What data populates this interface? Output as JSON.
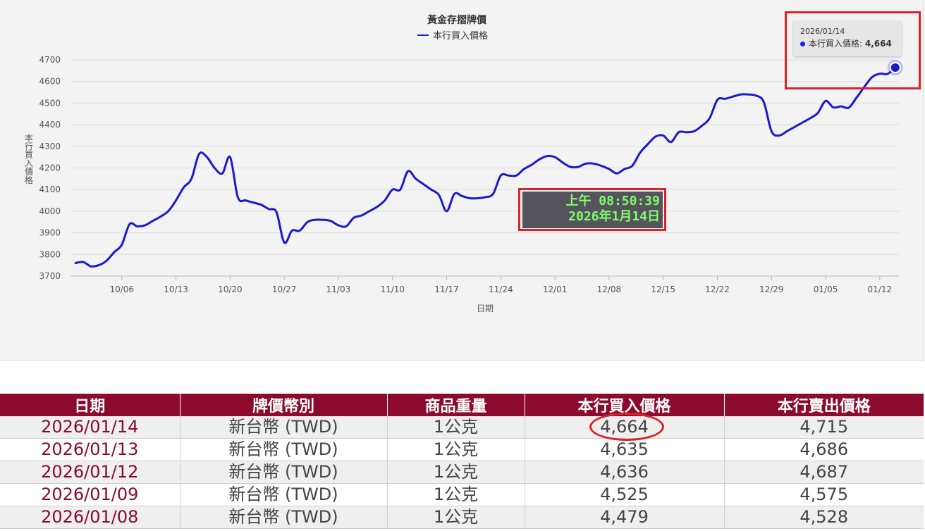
{
  "chart_data": {
    "type": "line",
    "title": "黃金存摺牌價",
    "xlabel": "日期",
    "ylabel": "本行買入價格",
    "ylim": [
      3700,
      4700
    ],
    "yticks": [
      3700,
      3800,
      3900,
      4000,
      4100,
      4200,
      4300,
      4400,
      4500,
      4600,
      4700
    ],
    "xticks": [
      "10/06",
      "10/13",
      "10/20",
      "10/27",
      "11/03",
      "11/10",
      "11/17",
      "11/24",
      "12/01",
      "12/08",
      "12/15",
      "12/22",
      "12/29",
      "01/05",
      "01/12"
    ],
    "grid": true,
    "legend": "top-center",
    "line_color": "#1a1acc",
    "series": [
      {
        "name": "本行買入價格",
        "points": [
          [
            "2025-09-30",
            3760
          ],
          [
            "2025-10-01",
            3765
          ],
          [
            "2025-10-02",
            3745
          ],
          [
            "2025-10-03",
            3750
          ],
          [
            "2025-10-04",
            3770
          ],
          [
            "2025-10-05",
            3810
          ],
          [
            "2025-10-06",
            3845
          ],
          [
            "2025-10-07",
            3940
          ],
          [
            "2025-10-08",
            3930
          ],
          [
            "2025-10-09",
            3935
          ],
          [
            "2025-10-10",
            3955
          ],
          [
            "2025-10-11",
            3975
          ],
          [
            "2025-10-12",
            4000
          ],
          [
            "2025-10-13",
            4050
          ],
          [
            "2025-10-14",
            4110
          ],
          [
            "2025-10-15",
            4150
          ],
          [
            "2025-10-16",
            4265
          ],
          [
            "2025-10-17",
            4250
          ],
          [
            "2025-10-18",
            4200
          ],
          [
            "2025-10-19",
            4175
          ],
          [
            "2025-10-20",
            4250
          ],
          [
            "2025-10-21",
            4065
          ],
          [
            "2025-10-22",
            4050
          ],
          [
            "2025-10-23",
            4040
          ],
          [
            "2025-10-24",
            4030
          ],
          [
            "2025-10-25",
            4010
          ],
          [
            "2025-10-26",
            3995
          ],
          [
            "2025-10-27",
            3855
          ],
          [
            "2025-10-28",
            3910
          ],
          [
            "2025-10-29",
            3910
          ],
          [
            "2025-10-30",
            3950
          ],
          [
            "2025-10-31",
            3960
          ],
          [
            "2025-11-01",
            3960
          ],
          [
            "2025-11-02",
            3955
          ],
          [
            "2025-11-03",
            3935
          ],
          [
            "2025-11-04",
            3930
          ],
          [
            "2025-11-05",
            3970
          ],
          [
            "2025-11-06",
            3980
          ],
          [
            "2025-11-07",
            4000
          ],
          [
            "2025-11-08",
            4020
          ],
          [
            "2025-11-09",
            4050
          ],
          [
            "2025-11-10",
            4100
          ],
          [
            "2025-11-11",
            4100
          ],
          [
            "2025-11-12",
            4185
          ],
          [
            "2025-11-13",
            4150
          ],
          [
            "2025-11-14",
            4125
          ],
          [
            "2025-11-15",
            4100
          ],
          [
            "2025-11-16",
            4075
          ],
          [
            "2025-11-17",
            4000
          ],
          [
            "2025-11-18",
            4080
          ],
          [
            "2025-11-19",
            4070
          ],
          [
            "2025-11-20",
            4060
          ],
          [
            "2025-11-21",
            4060
          ],
          [
            "2025-11-22",
            4065
          ],
          [
            "2025-11-23",
            4080
          ],
          [
            "2025-11-24",
            4165
          ],
          [
            "2025-11-25",
            4165
          ],
          [
            "2025-11-26",
            4165
          ],
          [
            "2025-11-27",
            4195
          ],
          [
            "2025-11-28",
            4215
          ],
          [
            "2025-11-29",
            4240
          ],
          [
            "2025-11-30",
            4255
          ],
          [
            "2025-12-01",
            4250
          ],
          [
            "2025-12-02",
            4225
          ],
          [
            "2025-12-03",
            4205
          ],
          [
            "2025-12-04",
            4205
          ],
          [
            "2025-12-05",
            4220
          ],
          [
            "2025-12-06",
            4220
          ],
          [
            "2025-12-07",
            4210
          ],
          [
            "2025-12-08",
            4195
          ],
          [
            "2025-12-09",
            4175
          ],
          [
            "2025-12-10",
            4195
          ],
          [
            "2025-12-11",
            4210
          ],
          [
            "2025-12-12",
            4270
          ],
          [
            "2025-12-13",
            4310
          ],
          [
            "2025-12-14",
            4345
          ],
          [
            "2025-12-15",
            4350
          ],
          [
            "2025-12-16",
            4320
          ],
          [
            "2025-12-17",
            4365
          ],
          [
            "2025-12-18",
            4365
          ],
          [
            "2025-12-19",
            4370
          ],
          [
            "2025-12-20",
            4395
          ],
          [
            "2025-12-21",
            4430
          ],
          [
            "2025-12-22",
            4515
          ],
          [
            "2025-12-23",
            4520
          ],
          [
            "2025-12-24",
            4530
          ],
          [
            "2025-12-25",
            4540
          ],
          [
            "2025-12-26",
            4540
          ],
          [
            "2025-12-27",
            4535
          ],
          [
            "2025-12-28",
            4505
          ],
          [
            "2025-12-29",
            4370
          ],
          [
            "2025-12-30",
            4350
          ],
          [
            "2025-12-31",
            4370
          ],
          [
            "2026-01-01",
            4390
          ],
          [
            "2026-01-02",
            4410
          ],
          [
            "2026-01-03",
            4430
          ],
          [
            "2026-01-04",
            4455
          ],
          [
            "2026-01-05",
            4510
          ],
          [
            "2026-01-06",
            4480
          ],
          [
            "2026-01-07",
            4485
          ],
          [
            "2026-01-08",
            4479
          ],
          [
            "2026-01-09",
            4525
          ],
          [
            "2026-01-10",
            4575
          ],
          [
            "2026-01-11",
            4620
          ],
          [
            "2026-01-12",
            4636
          ],
          [
            "2026-01-13",
            4635
          ],
          [
            "2026-01-14",
            4664
          ]
        ]
      }
    ],
    "tooltip": {
      "date": "2026/01/14",
      "label": "本行買入價格:",
      "value": "4,664"
    }
  },
  "timestamp": {
    "time": "上午 08:50:39",
    "date": "2026年1月14日"
  },
  "table": {
    "headers": [
      "日期",
      "牌價幣別",
      "商品重量",
      "本行買入價格",
      "本行賣出價格"
    ],
    "rows": [
      [
        "2026/01/14",
        "新台幣 (TWD)",
        "1公克",
        "4,664",
        "4,715"
      ],
      [
        "2026/01/13",
        "新台幣 (TWD)",
        "1公克",
        "4,635",
        "4,686"
      ],
      [
        "2026/01/12",
        "新台幣 (TWD)",
        "1公克",
        "4,636",
        "4,687"
      ],
      [
        "2026/01/09",
        "新台幣 (TWD)",
        "1公克",
        "4,525",
        "4,575"
      ],
      [
        "2026/01/08",
        "新台幣 (TWD)",
        "1公克",
        "4,479",
        "4,528"
      ]
    ]
  },
  "colors": {
    "header_bg": "#8c0a2e",
    "date_text": "#8c0a2e",
    "highlight": "#d8232a",
    "timestamp_text": "#7dff6a"
  }
}
